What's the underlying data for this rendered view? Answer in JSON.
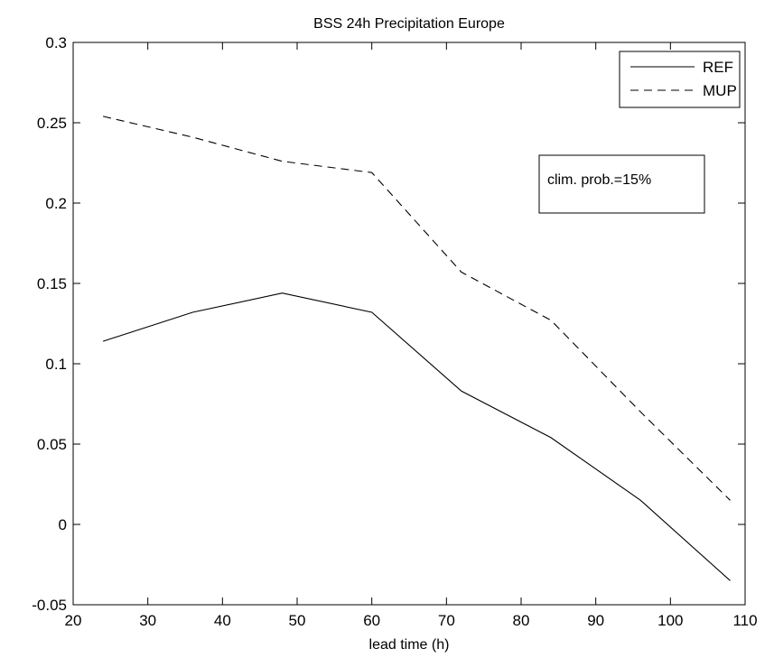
{
  "chart_data": {
    "type": "line",
    "title": "BSS 24h Precipitation Europe",
    "xlabel": "lead time (h)",
    "ylabel": "",
    "xlim": [
      20,
      110
    ],
    "ylim": [
      -0.05,
      0.3
    ],
    "xticks": [
      "20",
      "30",
      "40",
      "50",
      "60",
      "70",
      "80",
      "90",
      "100",
      "110"
    ],
    "yticks": [
      "-0.05",
      "0",
      "0.05",
      "0.1",
      "0.15",
      "0.2",
      "0.25",
      "0.3"
    ],
    "x": [
      24,
      36,
      48,
      60,
      72,
      84,
      96,
      108
    ],
    "series": [
      {
        "name": "REF",
        "style": "solid",
        "values": [
          0.114,
          0.132,
          0.144,
          0.132,
          0.083,
          0.054,
          0.015,
          -0.035
        ]
      },
      {
        "name": "MUP",
        "style": "dashed",
        "values": [
          0.254,
          0.241,
          0.226,
          0.219,
          0.157,
          0.127,
          0.07,
          0.015
        ]
      }
    ],
    "legend_position": "top-right",
    "annotation": "clim. prob.=15%",
    "grid": false,
    "line_color": "#000000"
  }
}
